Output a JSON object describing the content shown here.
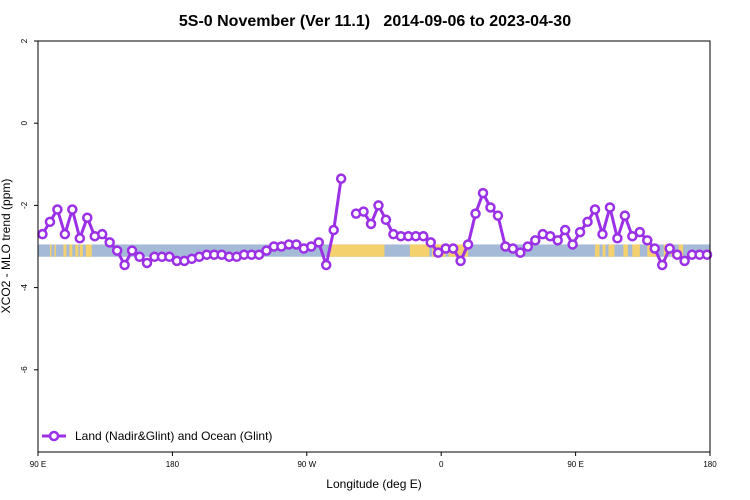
{
  "chart_data": {
    "type": "line",
    "title": "5S-0 November (Ver 11.1)   2014-09-06 to 2023-04-30",
    "xlabel": "Longitude (deg E)",
    "ylabel": "XCO2 - MLO trend (ppm)",
    "x_range_deg_east_from": 90,
    "x_span_deg": 450,
    "xlim": [
      90,
      540
    ],
    "ylim": [
      -8,
      2
    ],
    "x_ticks": [
      {
        "value": 90,
        "label": "90 E"
      },
      {
        "value": 180,
        "label": "180"
      },
      {
        "value": 270,
        "label": "90 W"
      },
      {
        "value": 360,
        "label": "0"
      },
      {
        "value": 450,
        "label": "90 E"
      },
      {
        "value": 540,
        "label": "180"
      }
    ],
    "y_ticks": [
      {
        "value": 2,
        "label": "2"
      },
      {
        "value": 0,
        "label": "0"
      },
      {
        "value": -2,
        "label": "-2"
      },
      {
        "value": -4,
        "label": "-4"
      },
      {
        "value": -6,
        "label": "-6"
      }
    ],
    "grid": false,
    "legend_position": "bottom-left",
    "surface_band": {
      "y_range": [
        -3.25,
        -2.95
      ],
      "ocean_color": "#a5bad6",
      "land_color": "#f5d16e",
      "land_segments": [
        [
          98,
          99
        ],
        [
          101,
          102
        ],
        [
          107,
          109
        ],
        [
          111,
          113
        ],
        [
          115,
          117
        ],
        [
          118,
          120
        ],
        [
          122,
          126
        ],
        [
          285,
          322
        ],
        [
          339,
          352
        ],
        [
          354,
          363
        ],
        [
          365,
          378
        ],
        [
          463,
          466
        ],
        [
          468,
          470
        ],
        [
          472,
          476
        ],
        [
          482,
          485
        ],
        [
          488,
          493
        ],
        [
          498,
          505
        ],
        [
          509,
          512
        ],
        [
          514,
          516
        ],
        [
          519,
          522
        ]
      ]
    },
    "series": [
      {
        "name": "Land (Nadir&Glint) and Ocean (Glint)",
        "color": "#9b30e6",
        "segments": [
          [
            [
              93,
              -2.7
            ],
            [
              98,
              -2.4
            ],
            [
              103,
              -2.1
            ],
            [
              108,
              -2.7
            ],
            [
              113,
              -2.1
            ],
            [
              118,
              -2.8
            ],
            [
              123,
              -2.3
            ],
            [
              128,
              -2.75
            ],
            [
              133,
              -2.7
            ],
            [
              138,
              -2.9
            ],
            [
              143,
              -3.1
            ],
            [
              148,
              -3.45
            ],
            [
              153,
              -3.1
            ],
            [
              158,
              -3.25
            ],
            [
              163,
              -3.4
            ],
            [
              168,
              -3.25
            ],
            [
              173,
              -3.25
            ],
            [
              178,
              -3.25
            ],
            [
              183,
              -3.35
            ],
            [
              188,
              -3.35
            ],
            [
              193,
              -3.3
            ],
            [
              198,
              -3.25
            ],
            [
              203,
              -3.2
            ],
            [
              208,
              -3.2
            ],
            [
              213,
              -3.2
            ],
            [
              218,
              -3.25
            ],
            [
              223,
              -3.25
            ],
            [
              228,
              -3.2
            ],
            [
              233,
              -3.2
            ],
            [
              238,
              -3.2
            ],
            [
              243,
              -3.1
            ],
            [
              248,
              -3.0
            ],
            [
              253,
              -3.0
            ],
            [
              258,
              -2.95
            ],
            [
              263,
              -2.95
            ],
            [
              268,
              -3.05
            ],
            [
              273,
              -3.0
            ],
            [
              278,
              -2.9
            ],
            [
              283,
              -3.45
            ],
            [
              288,
              -2.6
            ],
            [
              293,
              -1.35
            ]
          ],
          [
            [
              303,
              -2.2
            ],
            [
              308,
              -2.15
            ],
            [
              313,
              -2.45
            ],
            [
              318,
              -2.0
            ],
            [
              323,
              -2.35
            ],
            [
              328,
              -2.7
            ],
            [
              333,
              -2.75
            ],
            [
              338,
              -2.75
            ],
            [
              343,
              -2.75
            ],
            [
              348,
              -2.75
            ],
            [
              353,
              -2.9
            ],
            [
              358,
              -3.15
            ],
            [
              363,
              -3.05
            ],
            [
              368,
              -3.05
            ],
            [
              373,
              -3.35
            ],
            [
              378,
              -2.95
            ],
            [
              383,
              -2.2
            ],
            [
              388,
              -1.7
            ],
            [
              393,
              -2.05
            ],
            [
              398,
              -2.25
            ],
            [
              403,
              -3.0
            ],
            [
              408,
              -3.05
            ],
            [
              413,
              -3.15
            ],
            [
              418,
              -3.0
            ],
            [
              423,
              -2.85
            ],
            [
              428,
              -2.7
            ],
            [
              433,
              -2.75
            ],
            [
              438,
              -2.85
            ],
            [
              443,
              -2.6
            ],
            [
              448,
              -2.95
            ],
            [
              453,
              -2.65
            ],
            [
              458,
              -2.4
            ],
            [
              463,
              -2.1
            ],
            [
              468,
              -2.7
            ],
            [
              473,
              -2.05
            ],
            [
              478,
              -2.8
            ],
            [
              483,
              -2.25
            ],
            [
              488,
              -2.75
            ],
            [
              493,
              -2.65
            ],
            [
              498,
              -2.85
            ],
            [
              503,
              -3.05
            ],
            [
              508,
              -3.45
            ],
            [
              513,
              -3.05
            ],
            [
              518,
              -3.2
            ],
            [
              523,
              -3.35
            ],
            [
              528,
              -3.2
            ],
            [
              533,
              -3.2
            ],
            [
              538,
              -3.2
            ]
          ]
        ]
      }
    ]
  }
}
